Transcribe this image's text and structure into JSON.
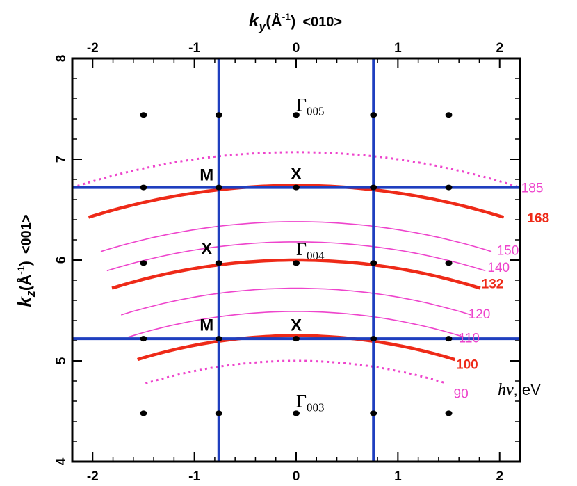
{
  "chart_data": {
    "type": "scatter",
    "top_axis_label": {
      "k": "k",
      "sub": "y",
      "unit_open": "(Å",
      "unit_exp": "-1",
      "unit_close": ")",
      "direction": "<010>"
    },
    "left_axis_label": {
      "k": "k",
      "sub": "z",
      "unit_open": "(Å",
      "unit_exp": "-1",
      "unit_close": ")",
      "direction": "<001>"
    },
    "xlim": [
      -2.2,
      2.2
    ],
    "ylim": [
      4,
      8
    ],
    "x_ticks": [
      -2,
      -1,
      0,
      1,
      2
    ],
    "x_tick_labels": [
      "-2",
      "-1",
      "0",
      "1",
      "2"
    ],
    "y_ticks": [
      4,
      5,
      6,
      7,
      8
    ],
    "y_tick_labels": [
      "4",
      "5",
      "6",
      "7",
      "8"
    ],
    "grid": false,
    "zone_boundaries": {
      "color": "#1f3fbf",
      "vertical_x": [
        -0.76,
        0.76
      ],
      "horizontal_y": [
        6.72,
        5.22
      ]
    },
    "lattice_points": {
      "color": "#000000",
      "x": [
        -1.5,
        -0.76,
        0,
        0.76,
        1.5
      ],
      "y": [
        7.44,
        6.72,
        5.97,
        5.22,
        4.48
      ]
    },
    "point_labels": [
      {
        "text": "M",
        "x": -0.88,
        "y": 6.79
      },
      {
        "text": "X",
        "x": 0.0,
        "y": 6.8
      },
      {
        "text": "X",
        "x": -0.88,
        "y": 6.06
      },
      {
        "text": "M",
        "x": -0.88,
        "y": 5.3
      },
      {
        "text": "X",
        "x": 0.0,
        "y": 5.3
      }
    ],
    "gamma_labels": [
      {
        "symbol": "Γ",
        "sub": "005",
        "x": 0.0,
        "y": 7.48
      },
      {
        "symbol": "Γ",
        "sub": "004",
        "x": 0.0,
        "y": 6.05
      },
      {
        "symbol": "Γ",
        "sub": "003",
        "x": 0.0,
        "y": 4.54
      }
    ],
    "series": [
      {
        "name": "185",
        "style": "dotted",
        "color": "#ee44cc",
        "k": 7.07,
        "x_range": [
          -2.2,
          2.2
        ],
        "label_x": 2.32,
        "label_y": 6.72
      },
      {
        "name": "168",
        "style": "thick",
        "color": "#ee2a18",
        "k": 6.74,
        "x_range": [
          -2.04,
          2.04
        ],
        "label_x": 2.38,
        "label_y": 6.42
      },
      {
        "name": "150",
        "style": "thin",
        "color": "#ee44cc",
        "k": 6.38,
        "x_range": [
          -1.92,
          1.92
        ],
        "label_x": 2.08,
        "label_y": 6.1
      },
      {
        "name": "140",
        "style": "thin",
        "color": "#ee44cc",
        "k": 6.18,
        "x_range": [
          -1.86,
          1.86
        ],
        "label_x": 1.99,
        "label_y": 5.93
      },
      {
        "name": "132",
        "style": "thick",
        "color": "#ee2a18",
        "k": 6.0,
        "x_range": [
          -1.81,
          1.81
        ],
        "label_x": 1.93,
        "label_y": 5.77
      },
      {
        "name": "120",
        "style": "thin",
        "color": "#ee44cc",
        "k": 5.72,
        "x_range": [
          -1.72,
          1.72
        ],
        "label_x": 1.8,
        "label_y": 5.47
      },
      {
        "name": "110",
        "style": "thin",
        "color": "#ee44cc",
        "k": 5.49,
        "x_range": [
          -1.65,
          1.65
        ],
        "label_x": 1.7,
        "label_y": 5.23
      },
      {
        "name": "100",
        "style": "thick",
        "color": "#ee2a18",
        "k": 5.25,
        "x_range": [
          -1.56,
          1.56
        ],
        "label_x": 1.68,
        "label_y": 4.97
      },
      {
        "name": "90",
        "style": "dotted",
        "color": "#ee44cc",
        "k": 5.0,
        "x_range": [
          -1.48,
          1.48
        ],
        "label_x": 1.62,
        "label_y": 4.68
      }
    ],
    "legend_title": {
      "symbol": "hν",
      "unit": ", eV"
    }
  }
}
